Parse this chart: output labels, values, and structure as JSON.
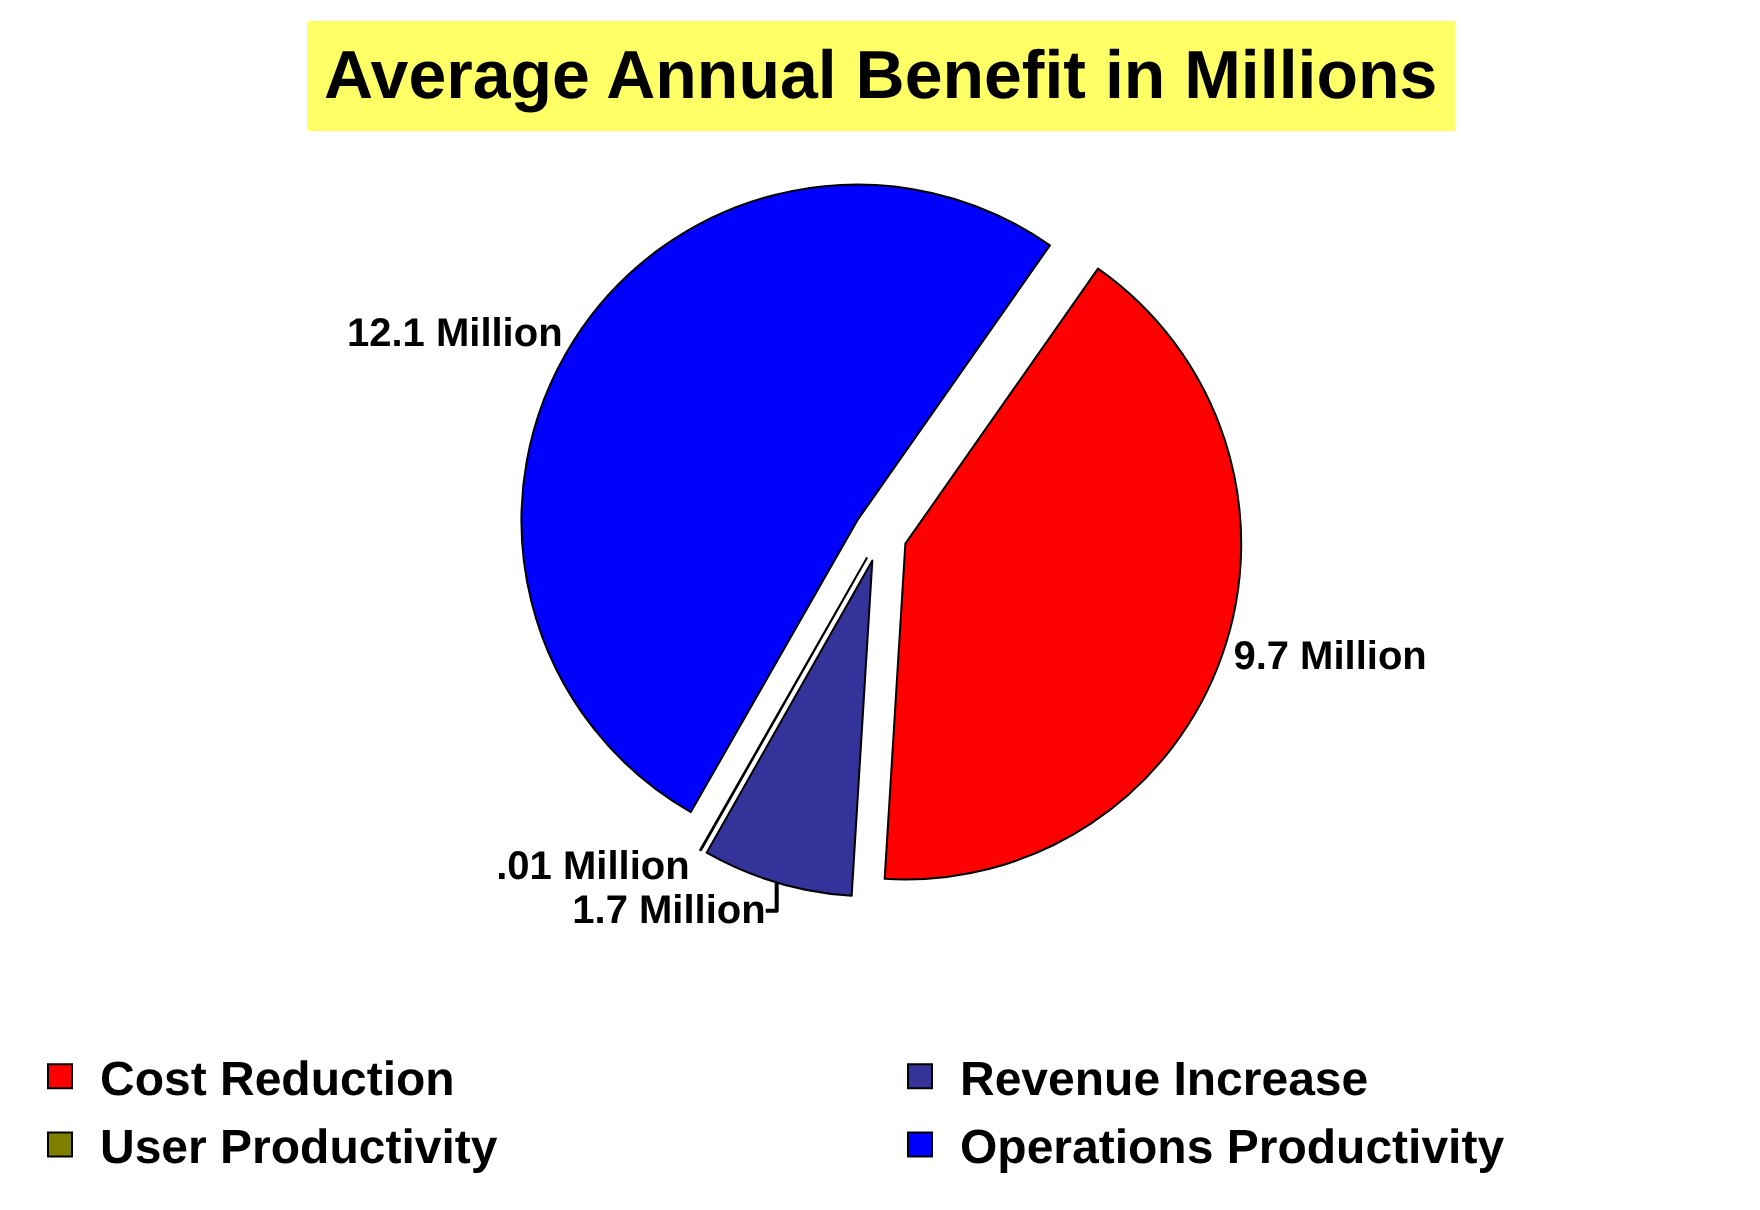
{
  "chart_data": {
    "type": "pie",
    "title": "Average Annual Benefit in Millions",
    "categories": [
      "Cost Reduction",
      "Revenue Increase",
      "User Productivity",
      "Operations Productivity"
    ],
    "values": [
      9.7,
      1.7,
      0.01,
      12.1
    ],
    "value_labels": [
      "9.7 Million",
      "1.7 Million",
      ".01 Million",
      "12.1 Million"
    ],
    "colors": [
      "#ff0000",
      "#333399",
      "#808000",
      "#0000ff"
    ],
    "legend": "bottom"
  }
}
